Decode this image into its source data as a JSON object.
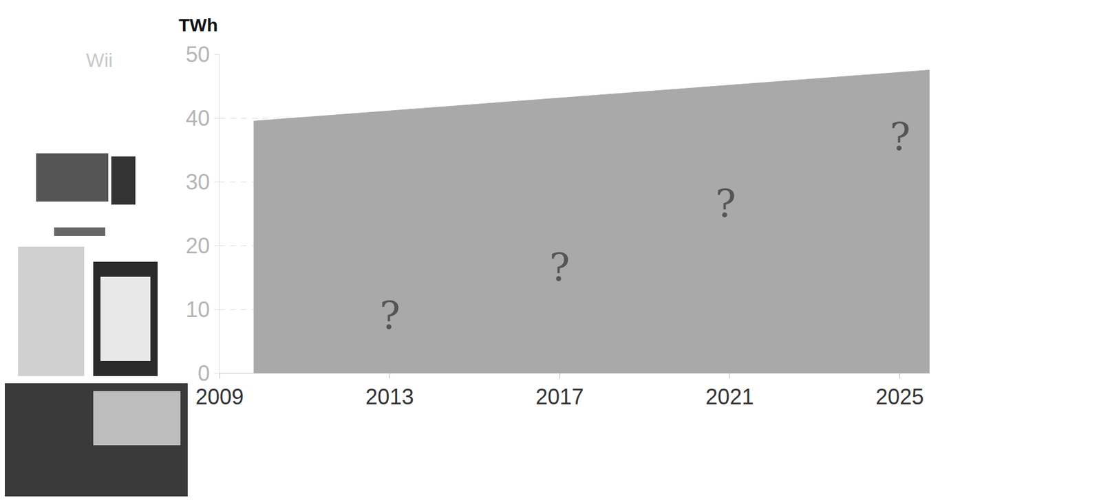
{
  "chart_data": {
    "type": "area",
    "y_label": "TWh",
    "x": [
      2009.8,
      2025.7
    ],
    "values": [
      39.5,
      47.5
    ],
    "color": "#a9a9a9",
    "xlim": [
      2009,
      2025.7
    ],
    "xticks": [
      2009,
      2013,
      2017,
      2021,
      2025
    ],
    "ylim": [
      0,
      50
    ],
    "yticks": [
      0,
      10,
      20,
      30,
      40,
      50
    ],
    "grid": true,
    "annotations": [
      {
        "text": "?",
        "x": 2013,
        "y": 9
      },
      {
        "text": "?",
        "x": 2017,
        "y": 16.5
      },
      {
        "text": "?",
        "x": 2020.9,
        "y": 26.5
      },
      {
        "text": "?",
        "x": 2025,
        "y": 37
      }
    ],
    "icon_labels": [
      "Wii"
    ]
  }
}
